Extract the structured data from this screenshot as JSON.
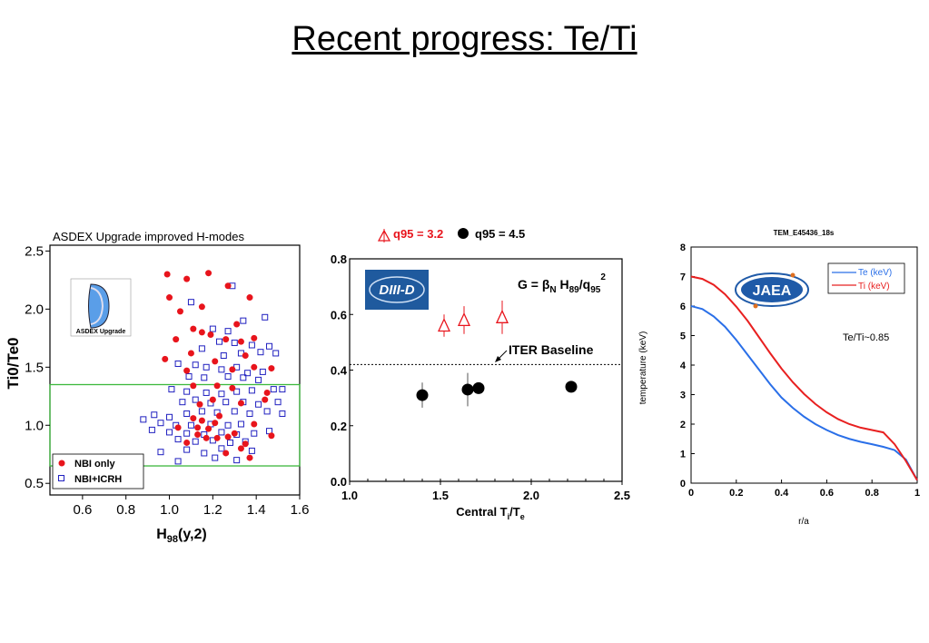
{
  "slide": {
    "title": "Recent progress: Te/Ti"
  },
  "colors": {
    "red": "#e8141c",
    "blue": "#2020c0",
    "green": "#3cb83c",
    "te_blue": "#2a6fe8",
    "ti_red": "#e82020"
  },
  "chart_data": [
    {
      "type": "scatter",
      "title": "ASDEX Upgrade improved H-modes",
      "xlabel": "H98(y,2)",
      "ylabel": "Ti0/Te0",
      "xlim": [
        0.45,
        1.6
      ],
      "ylim": [
        0.4,
        2.55
      ],
      "xticks": [
        "0.6",
        "0.8",
        "1.0",
        "1.2",
        "1.4",
        "1.6"
      ],
      "yticks": [
        "0.5",
        "1.0",
        "1.5",
        "2.0",
        "2.5"
      ],
      "logo_text": "ASDEX Upgrade",
      "band": {
        "ymin": 0.65,
        "ymax": 1.35
      },
      "legend": [
        "NBI only",
        "NBI+ICRH"
      ],
      "series": [
        {
          "name": "NBI only",
          "marker": "filled-circle",
          "points": [
            [
              0.99,
              2.3
            ],
            [
              1.08,
              2.26
            ],
            [
              1.18,
              2.31
            ],
            [
              1.0,
              2.1
            ],
            [
              1.05,
              1.98
            ],
            [
              1.15,
              2.02
            ],
            [
              1.27,
              2.2
            ],
            [
              1.37,
              2.1
            ],
            [
              1.11,
              1.83
            ],
            [
              1.15,
              1.8
            ],
            [
              1.19,
              1.78
            ],
            [
              1.31,
              1.87
            ],
            [
              1.03,
              1.74
            ],
            [
              1.26,
              1.74
            ],
            [
              1.33,
              1.72
            ],
            [
              1.39,
              1.75
            ],
            [
              0.98,
              1.57
            ],
            [
              1.1,
              1.62
            ],
            [
              1.21,
              1.55
            ],
            [
              1.35,
              1.6
            ],
            [
              1.08,
              1.47
            ],
            [
              1.29,
              1.48
            ],
            [
              1.39,
              1.5
            ],
            [
              1.47,
              1.49
            ],
            [
              1.11,
              1.34
            ],
            [
              1.22,
              1.34
            ],
            [
              1.29,
              1.32
            ],
            [
              1.45,
              1.28
            ],
            [
              1.14,
              1.18
            ],
            [
              1.2,
              1.22
            ],
            [
              1.33,
              1.19
            ],
            [
              1.44,
              1.22
            ],
            [
              1.11,
              1.06
            ],
            [
              1.15,
              1.04
            ],
            [
              1.23,
              1.08
            ],
            [
              1.39,
              1.01
            ],
            [
              1.04,
              0.98
            ],
            [
              1.13,
              0.98
            ],
            [
              1.18,
              0.97
            ],
            [
              1.21,
              1.02
            ],
            [
              1.13,
              0.92
            ],
            [
              1.17,
              0.89
            ],
            [
              1.22,
              0.89
            ],
            [
              1.27,
              0.9
            ],
            [
              1.3,
              0.93
            ],
            [
              1.47,
              0.91
            ],
            [
              1.08,
              0.85
            ],
            [
              1.35,
              0.84
            ],
            [
              1.26,
              0.76
            ],
            [
              1.37,
              0.72
            ],
            [
              1.33,
              0.8
            ]
          ]
        },
        {
          "name": "NBI+ICRH",
          "marker": "open-square",
          "points": [
            [
              1.29,
              2.2
            ],
            [
              1.1,
              2.06
            ],
            [
              1.2,
              1.83
            ],
            [
              1.27,
              1.81
            ],
            [
              1.34,
              1.9
            ],
            [
              1.44,
              1.93
            ],
            [
              1.23,
              1.72
            ],
            [
              1.3,
              1.71
            ],
            [
              1.38,
              1.69
            ],
            [
              1.46,
              1.68
            ],
            [
              1.15,
              1.66
            ],
            [
              1.25,
              1.6
            ],
            [
              1.33,
              1.62
            ],
            [
              1.42,
              1.63
            ],
            [
              1.49,
              1.62
            ],
            [
              1.04,
              1.53
            ],
            [
              1.12,
              1.52
            ],
            [
              1.17,
              1.5
            ],
            [
              1.24,
              1.48
            ],
            [
              1.31,
              1.5
            ],
            [
              1.36,
              1.45
            ],
            [
              1.43,
              1.46
            ],
            [
              1.09,
              1.42
            ],
            [
              1.16,
              1.41
            ],
            [
              1.27,
              1.42
            ],
            [
              1.34,
              1.41
            ],
            [
              1.41,
              1.39
            ],
            [
              1.01,
              1.31
            ],
            [
              1.08,
              1.29
            ],
            [
              1.17,
              1.28
            ],
            [
              1.24,
              1.27
            ],
            [
              1.31,
              1.29
            ],
            [
              1.38,
              1.3
            ],
            [
              1.48,
              1.31
            ],
            [
              1.52,
              1.31
            ],
            [
              1.06,
              1.2
            ],
            [
              1.12,
              1.22
            ],
            [
              1.19,
              1.19
            ],
            [
              1.26,
              1.2
            ],
            [
              1.34,
              1.2
            ],
            [
              1.41,
              1.18
            ],
            [
              1.5,
              1.2
            ],
            [
              0.93,
              1.09
            ],
            [
              1.0,
              1.07
            ],
            [
              1.08,
              1.1
            ],
            [
              1.15,
              1.12
            ],
            [
              1.22,
              1.11
            ],
            [
              1.3,
              1.12
            ],
            [
              1.37,
              1.1
            ],
            [
              1.45,
              1.12
            ],
            [
              1.52,
              1.1
            ],
            [
              0.88,
              1.05
            ],
            [
              0.96,
              1.02
            ],
            [
              1.03,
              1.0
            ],
            [
              1.1,
              1.0
            ],
            [
              1.19,
              1.01
            ],
            [
              1.27,
              1.0
            ],
            [
              1.33,
              1.01
            ],
            [
              0.92,
              0.96
            ],
            [
              1.0,
              0.94
            ],
            [
              1.08,
              0.93
            ],
            [
              1.16,
              0.92
            ],
            [
              1.24,
              0.94
            ],
            [
              1.31,
              0.92
            ],
            [
              1.39,
              0.93
            ],
            [
              1.46,
              0.95
            ],
            [
              1.04,
              0.88
            ],
            [
              1.12,
              0.86
            ],
            [
              1.2,
              0.87
            ],
            [
              1.28,
              0.85
            ],
            [
              1.35,
              0.86
            ],
            [
              0.96,
              0.77
            ],
            [
              1.08,
              0.79
            ],
            [
              1.16,
              0.76
            ],
            [
              1.24,
              0.8
            ],
            [
              1.38,
              0.78
            ],
            [
              1.04,
              0.69
            ],
            [
              1.21,
              0.72
            ],
            [
              1.31,
              0.7
            ]
          ]
        }
      ]
    },
    {
      "type": "scatter",
      "title": "",
      "xlabel": "Central Ti/Te",
      "ylabel": "",
      "xlim": [
        1.0,
        2.5
      ],
      "ylim": [
        0.0,
        0.8
      ],
      "xticks": [
        "1.0",
        "1.5",
        "2.0",
        "2.5"
      ],
      "yticks": [
        "0.0",
        "0.2",
        "0.4",
        "0.6",
        "0.8"
      ],
      "legend": [
        "q95 = 3.2",
        "q95 = 4.5"
      ],
      "formula": "G = βN H89/q95²",
      "logo_text": "DIII-D",
      "reference_line": {
        "y": 0.42,
        "label": "ITER Baseline"
      },
      "series": [
        {
          "name": "q95 = 3.2",
          "marker": "open-triangle",
          "points": [
            {
              "x": 1.52,
              "y": 0.56,
              "err": 0.04
            },
            {
              "x": 1.63,
              "y": 0.58,
              "err": 0.05
            },
            {
              "x": 1.84,
              "y": 0.59,
              "err": 0.06
            }
          ]
        },
        {
          "name": "q95 = 4.5",
          "marker": "filled-circle",
          "points": [
            {
              "x": 1.4,
              "y": 0.31,
              "err": 0.045
            },
            {
              "x": 1.65,
              "y": 0.33,
              "err": 0.06
            },
            {
              "x": 1.71,
              "y": 0.335,
              "err": 0.0
            },
            {
              "x": 2.22,
              "y": 0.34,
              "err": 0.0
            }
          ]
        }
      ]
    },
    {
      "type": "line",
      "title": "TEM_E45436_18s",
      "xlabel": "r/a",
      "ylabel": "temperature (keV)",
      "xlim": [
        0,
        1
      ],
      "ylim": [
        0,
        8
      ],
      "xticks": [
        "0",
        "0.2",
        "0.4",
        "0.6",
        "0.8",
        "1"
      ],
      "yticks": [
        "0",
        "1",
        "2",
        "3",
        "4",
        "5",
        "6",
        "7",
        "8"
      ],
      "annotation": "Te/Ti~0.85",
      "logo_text": "JAEA",
      "legend": [
        "Te (keV)",
        "Ti (keV)"
      ],
      "series": [
        {
          "name": "Te (keV)",
          "x": [
            0,
            0.05,
            0.1,
            0.15,
            0.2,
            0.25,
            0.3,
            0.35,
            0.4,
            0.45,
            0.5,
            0.55,
            0.6,
            0.65,
            0.7,
            0.75,
            0.8,
            0.85,
            0.9,
            0.95,
            1.0
          ],
          "y": [
            6.0,
            5.9,
            5.65,
            5.3,
            4.85,
            4.35,
            3.85,
            3.35,
            2.9,
            2.55,
            2.25,
            2.0,
            1.8,
            1.63,
            1.5,
            1.4,
            1.32,
            1.23,
            1.12,
            0.8,
            0.1
          ]
        },
        {
          "name": "Ti (keV)",
          "x": [
            0,
            0.05,
            0.1,
            0.15,
            0.2,
            0.25,
            0.3,
            0.35,
            0.4,
            0.45,
            0.5,
            0.55,
            0.6,
            0.65,
            0.7,
            0.75,
            0.8,
            0.85,
            0.9,
            0.95,
            1.0
          ],
          "y": [
            7.0,
            6.92,
            6.72,
            6.4,
            5.98,
            5.5,
            4.95,
            4.4,
            3.88,
            3.42,
            3.02,
            2.68,
            2.4,
            2.17,
            2.0,
            1.88,
            1.8,
            1.72,
            1.32,
            0.75,
            0.1
          ]
        }
      ]
    }
  ]
}
